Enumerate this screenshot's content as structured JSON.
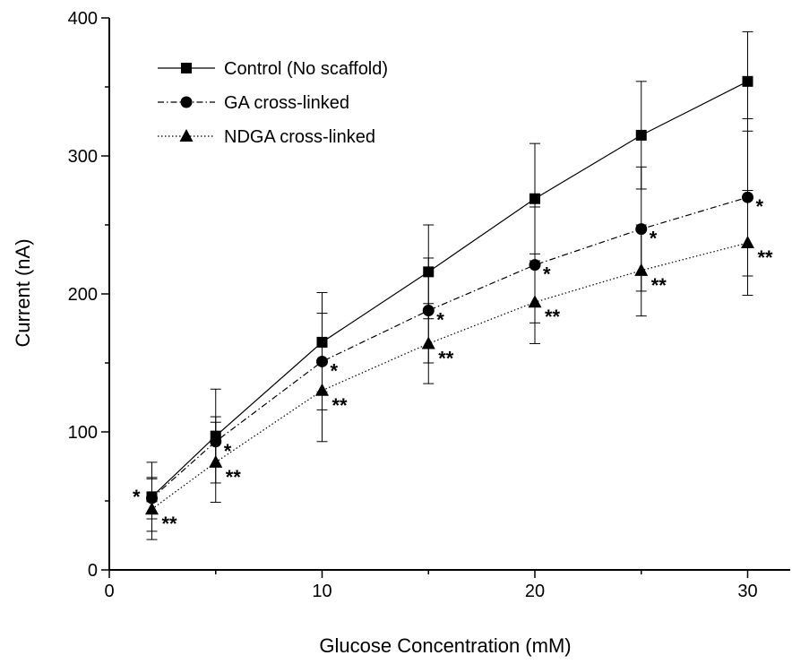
{
  "chart_data": {
    "type": "line",
    "xlabel": "Glucose Concentration (mM)",
    "ylabel": "Current (nA)",
    "xlim": [
      0,
      32
    ],
    "ylim": [
      0,
      400
    ],
    "xticks": [
      "0",
      "10",
      "20",
      "30"
    ],
    "yticks": [
      "0",
      "100",
      "200",
      "300",
      "400"
    ],
    "grid": false,
    "legend_position": "top-left",
    "x": [
      2,
      5,
      10,
      15,
      20,
      25,
      30
    ],
    "series": [
      {
        "name": "Control (No scaffold)",
        "marker": "square",
        "line_style": "solid",
        "values": [
          53,
          97,
          165,
          216,
          269,
          315,
          354
        ],
        "errors": [
          25,
          34,
          36,
          34,
          40,
          39,
          36
        ],
        "sig_labels": [
          "",
          "",
          "",
          "",
          "",
          "",
          ""
        ]
      },
      {
        "name": "GA cross-linked",
        "marker": "circle",
        "line_style": "dashdot",
        "values": [
          52,
          93,
          151,
          188,
          221,
          247,
          270
        ],
        "errors": [
          15,
          18,
          35,
          38,
          42,
          45,
          57
        ],
        "sig_labels": [
          "*",
          "*",
          "*",
          "*",
          "*",
          "*",
          "*"
        ]
      },
      {
        "name": "NDGA cross-linked",
        "marker": "triangle",
        "line_style": "dotted",
        "values": [
          44,
          78,
          130,
          164,
          194,
          217,
          237
        ],
        "errors": [
          22,
          29,
          37,
          29,
          30,
          33,
          38
        ],
        "sig_labels": [
          "**",
          "**",
          "**",
          "**",
          "**",
          "**",
          "**"
        ]
      }
    ]
  }
}
